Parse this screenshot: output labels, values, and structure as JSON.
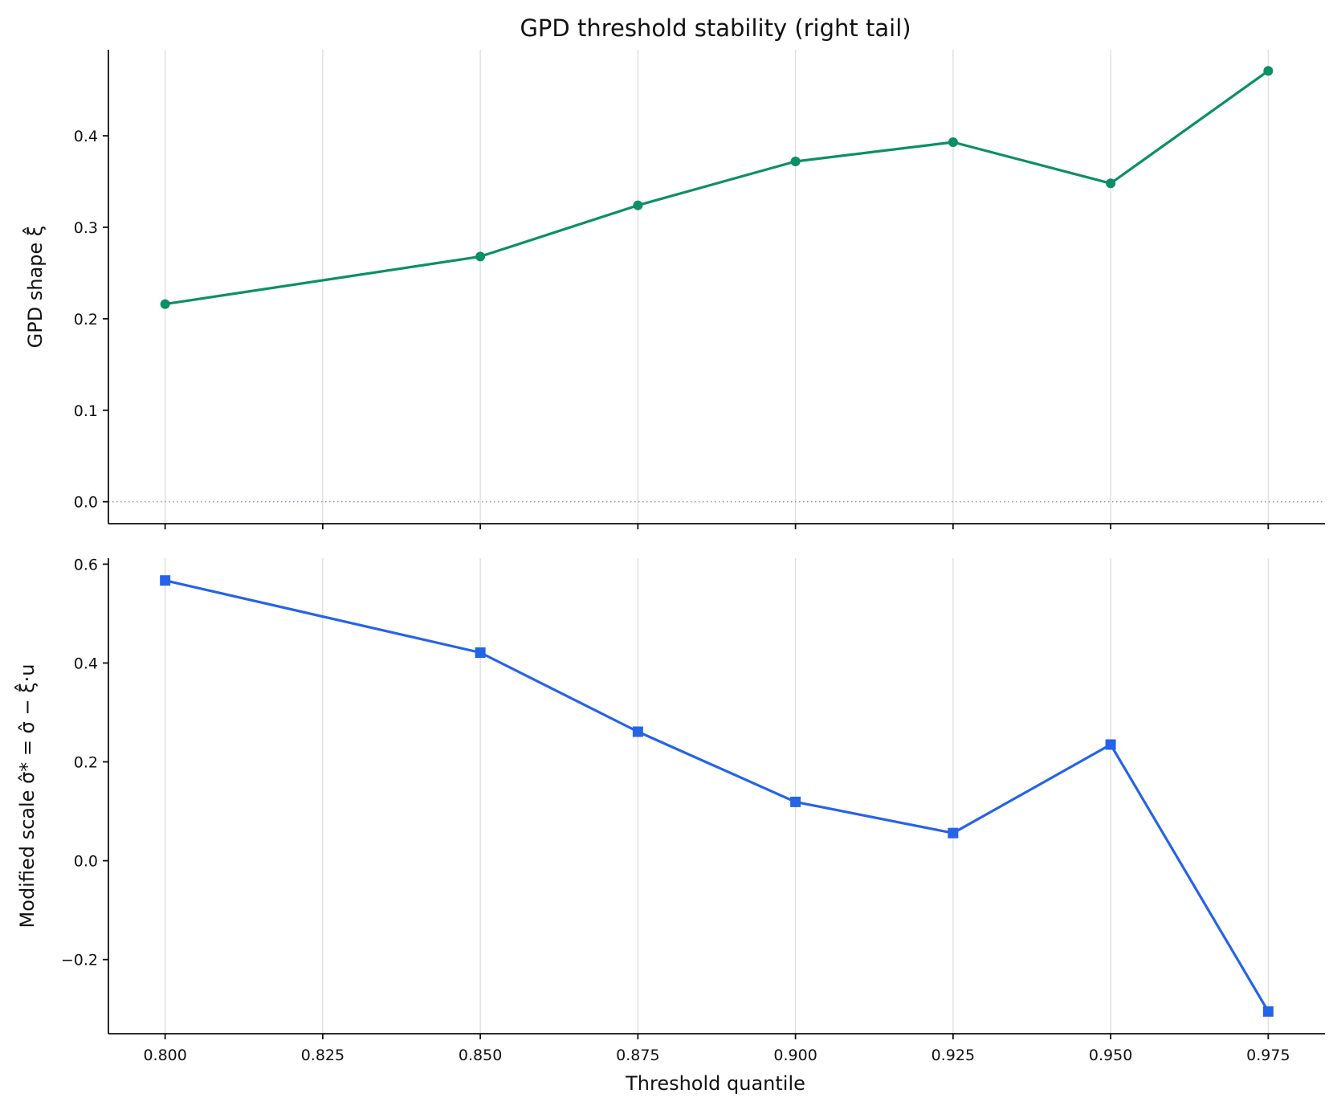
{
  "chart_data": {
    "type": "line",
    "title": "GPD threshold stability (right tail)",
    "xlabel": "Threshold quantile",
    "x": [
      0.8,
      0.85,
      0.875,
      0.9,
      0.925,
      0.95,
      0.975
    ],
    "x_ticks": [
      0.8,
      0.825,
      0.85,
      0.875,
      0.9,
      0.925,
      0.95,
      0.975
    ],
    "x_tick_labels": [
      "0.800",
      "0.825",
      "0.850",
      "0.875",
      "0.900",
      "0.925",
      "0.950",
      "0.975"
    ],
    "xlim": [
      0.791,
      0.984
    ],
    "grid": "vertical",
    "panels": [
      {
        "ylabel": "GPD shape ξ̂",
        "color": "#0b8f66",
        "marker": "circle",
        "values": [
          0.216,
          0.268,
          0.324,
          0.372,
          0.393,
          0.348,
          0.471
        ],
        "ylim": [
          -0.024,
          0.494
        ],
        "y_ticks": [
          0.0,
          0.1,
          0.2,
          0.3,
          0.4
        ],
        "y_tick_labels": [
          "0.0",
          "0.1",
          "0.2",
          "0.3",
          "0.4"
        ],
        "reference_line": {
          "y": 0,
          "style": "dotted",
          "color": "#9090c8"
        }
      },
      {
        "ylabel": "Modified scale σ̂* = σ̂ − ξ̂·u",
        "color": "#2563e8",
        "marker": "square",
        "values": [
          0.567,
          0.421,
          0.261,
          0.119,
          0.056,
          0.235,
          -0.305
        ],
        "ylim": [
          -0.35,
          0.612
        ],
        "y_ticks": [
          -0.2,
          0.0,
          0.2,
          0.4,
          0.6
        ],
        "y_tick_labels": [
          "−0.2",
          "0.0",
          "0.2",
          "0.4",
          "0.6"
        ]
      }
    ]
  }
}
